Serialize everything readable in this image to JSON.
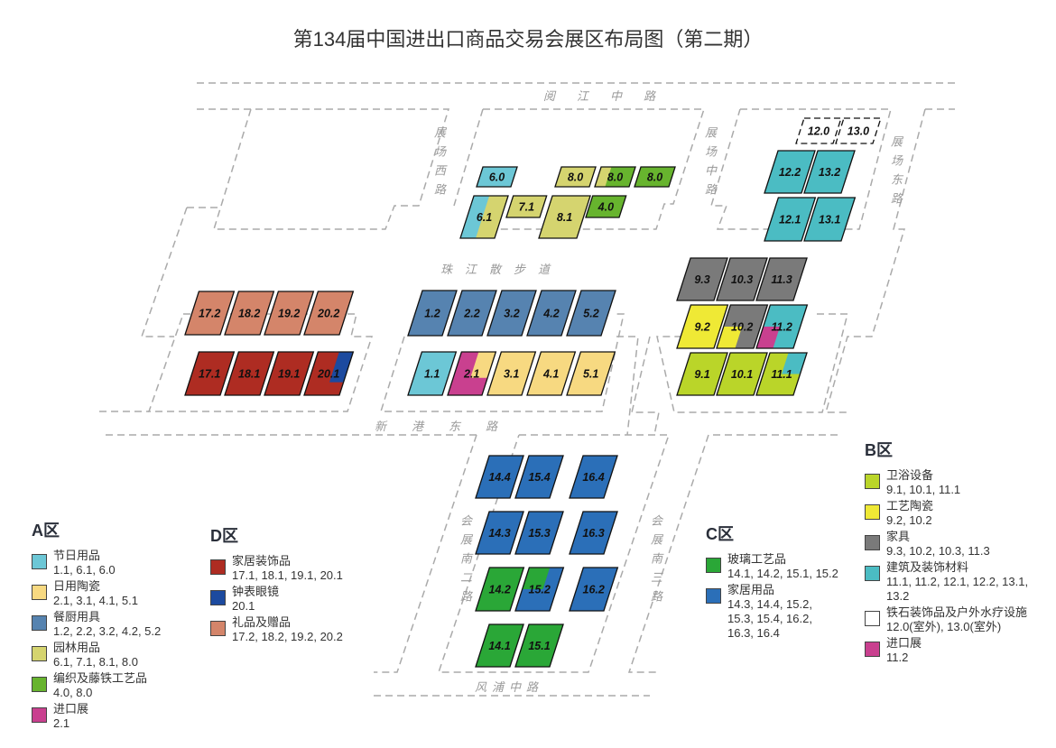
{
  "title": "第134届中国进出口商品交易会展区布局图（第二期）",
  "roads": {
    "yuejiang": "阅江中路",
    "west": "展场西路",
    "middle": "展场中路",
    "east": "展场东路",
    "zhujiang": "珠江散步道",
    "xingang": "新港东路",
    "south2": "会展南二路",
    "south3": "会展南三路",
    "fengpu": "风浦中路"
  },
  "colors": {
    "a_festival": "#6cc7d6",
    "a_ceramics": "#f7d981",
    "a_kitchen": "#5683b0",
    "a_garden": "#d5d46f",
    "a_weaving": "#67b42e",
    "import": "#c9408f",
    "d_decor": "#ae2c22",
    "d_clocks": "#1c4a9f",
    "d_gifts": "#d4856a",
    "c_glass": "#2aa737",
    "c_household": "#2b6fb8",
    "b_sanitary": "#bad529",
    "b_artceramics": "#efe935",
    "b_furniture": "#7a7a7a",
    "b_building": "#4bbcc3",
    "b_outdoor": "#ffffff"
  },
  "halls": [
    {
      "label": "6.0",
      "fill": "a_festival"
    },
    {
      "label": "8.0",
      "fill": "a_garden"
    },
    {
      "label": "8.0",
      "fill": "a_weaving",
      "overlay": "a_garden"
    },
    {
      "label": "8.0",
      "fill": "a_weaving"
    },
    {
      "label": "6.1",
      "fill": "a_garden",
      "overlay": "a_festival"
    },
    {
      "label": "7.1",
      "fill": "a_garden"
    },
    {
      "label": "8.1",
      "fill": "a_garden"
    },
    {
      "label": "4.0",
      "fill": "a_weaving"
    },
    {
      "label": "1.2",
      "fill": "a_kitchen"
    },
    {
      "label": "2.2",
      "fill": "a_kitchen"
    },
    {
      "label": "3.2",
      "fill": "a_kitchen"
    },
    {
      "label": "4.2",
      "fill": "a_kitchen"
    },
    {
      "label": "5.2",
      "fill": "a_kitchen"
    },
    {
      "label": "1.1",
      "fill": "a_festival"
    },
    {
      "label": "2.1",
      "fill": "import",
      "overlay": "a_ceramics"
    },
    {
      "label": "3.1",
      "fill": "a_ceramics"
    },
    {
      "label": "4.1",
      "fill": "a_ceramics"
    },
    {
      "label": "5.1",
      "fill": "a_ceramics"
    },
    {
      "label": "17.2",
      "fill": "d_gifts"
    },
    {
      "label": "18.2",
      "fill": "d_gifts"
    },
    {
      "label": "19.2",
      "fill": "d_gifts"
    },
    {
      "label": "20.2",
      "fill": "d_gifts"
    },
    {
      "label": "17.1",
      "fill": "d_decor"
    },
    {
      "label": "18.1",
      "fill": "d_decor"
    },
    {
      "label": "19.1",
      "fill": "d_decor"
    },
    {
      "label": "20.1",
      "fill": "d_decor",
      "overlay": "d_clocks"
    },
    {
      "label": "12.0",
      "fill": "b_outdoor",
      "dashed": true
    },
    {
      "label": "13.0",
      "fill": "b_outdoor",
      "dashed": true
    },
    {
      "label": "12.2",
      "fill": "b_building"
    },
    {
      "label": "13.2",
      "fill": "b_building"
    },
    {
      "label": "12.1",
      "fill": "b_building"
    },
    {
      "label": "13.1",
      "fill": "b_building"
    },
    {
      "label": "9.3",
      "fill": "b_furniture"
    },
    {
      "label": "10.3",
      "fill": "b_furniture"
    },
    {
      "label": "11.3",
      "fill": "b_furniture"
    },
    {
      "label": "9.2",
      "fill": "b_artceramics"
    },
    {
      "label": "10.2",
      "fill": "b_furniture",
      "overlay": "b_artceramics"
    },
    {
      "label": "11.2",
      "fill": "b_building",
      "overlay": "import"
    },
    {
      "label": "9.1",
      "fill": "b_sanitary"
    },
    {
      "label": "10.1",
      "fill": "b_sanitary"
    },
    {
      "label": "11.1",
      "fill": "b_sanitary",
      "overlay": "b_building"
    },
    {
      "label": "14.4",
      "fill": "c_household"
    },
    {
      "label": "15.4",
      "fill": "c_household"
    },
    {
      "label": "16.4",
      "fill": "c_household"
    },
    {
      "label": "14.3",
      "fill": "c_household"
    },
    {
      "label": "15.3",
      "fill": "c_household"
    },
    {
      "label": "16.3",
      "fill": "c_household"
    },
    {
      "label": "14.2",
      "fill": "c_glass"
    },
    {
      "label": "15.2",
      "fill": "c_household",
      "overlay": "c_glass"
    },
    {
      "label": "16.2",
      "fill": "c_household"
    },
    {
      "label": "14.1",
      "fill": "c_glass"
    },
    {
      "label": "15.1",
      "fill": "c_glass"
    }
  ],
  "legends": {
    "A": {
      "heading": "A区",
      "items": [
        {
          "name": "节日用品",
          "halls": "1.1, 6.1, 6.0",
          "color": "a_festival"
        },
        {
          "name": "日用陶瓷",
          "halls": "2.1, 3.1, 4.1, 5.1",
          "color": "a_ceramics"
        },
        {
          "name": "餐厨用具",
          "halls": "1.2, 2.2, 3.2, 4.2, 5.2",
          "color": "a_kitchen"
        },
        {
          "name": "园林用品",
          "halls": "6.1, 7.1, 8.1, 8.0",
          "color": "a_garden"
        },
        {
          "name": "编织及藤铁工艺品",
          "halls": "4.0, 8.0",
          "color": "a_weaving"
        },
        {
          "name": "进口展",
          "halls": "2.1",
          "color": "import"
        }
      ]
    },
    "D": {
      "heading": "D区",
      "items": [
        {
          "name": "家居装饰品",
          "halls": "17.1, 18.1, 19.1, 20.1",
          "color": "d_decor"
        },
        {
          "name": "钟表眼镜",
          "halls": "20.1",
          "color": "d_clocks"
        },
        {
          "name": "礼品及赠品",
          "halls": "17.2, 18.2, 19.2, 20.2",
          "color": "d_gifts"
        }
      ]
    },
    "C": {
      "heading": "C区",
      "items": [
        {
          "name": "玻璃工艺品",
          "halls": "14.1, 14.2, 15.1, 15.2",
          "color": "c_glass"
        },
        {
          "name": "家居用品",
          "halls": "14.3, 14.4, 15.2, 15.3, 15.4, 16.2, 16.3, 16.4",
          "color": "c_household"
        }
      ]
    },
    "B": {
      "heading": "B区",
      "items": [
        {
          "name": "卫浴设备",
          "halls": "9.1, 10.1, 11.1",
          "color": "b_sanitary"
        },
        {
          "name": "工艺陶瓷",
          "halls": "9.2, 10.2",
          "color": "b_artceramics"
        },
        {
          "name": "家具",
          "halls": "9.3, 10.2, 10.3, 11.3",
          "color": "b_furniture"
        },
        {
          "name": "建筑及装饰材料",
          "halls": "11.1, 11.2, 12.1, 12.2, 13.1, 13.2",
          "color": "b_building"
        },
        {
          "name": "铁石装饰品及户外水疗设施",
          "halls": "12.0(室外), 13.0(室外)",
          "color": "b_outdoor"
        },
        {
          "name": "进口展",
          "halls": "11.2",
          "color": "import"
        }
      ]
    }
  }
}
